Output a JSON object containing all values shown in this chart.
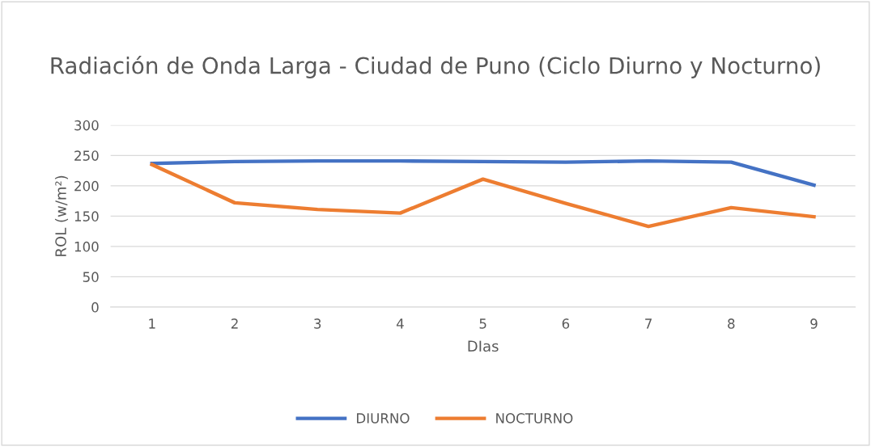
{
  "chart_data": {
    "type": "line",
    "title": "Radiación de Onda Larga - Ciudad de Puno (Ciclo Diurno y Nocturno)",
    "xlabel": "DIas",
    "ylabel": "ROL (w/m²)",
    "categories": [
      "1",
      "2",
      "3",
      "4",
      "5",
      "6",
      "7",
      "8",
      "9"
    ],
    "series": [
      {
        "name": "DIURNO",
        "color": "#4472c4",
        "values": [
          237,
          240,
          241,
          241,
          240,
          239,
          241,
          239,
          201
        ]
      },
      {
        "name": "NOCTURNO",
        "color": "#ed7d31",
        "values": [
          235,
          172,
          161,
          155,
          211,
          171,
          133,
          164,
          149
        ]
      }
    ],
    "ylim": [
      0,
      300
    ],
    "yticks": [
      0,
      50,
      100,
      150,
      200,
      250,
      300
    ],
    "grid": "y",
    "legend": "bottom",
    "marker": "none",
    "line_style": "solid"
  }
}
